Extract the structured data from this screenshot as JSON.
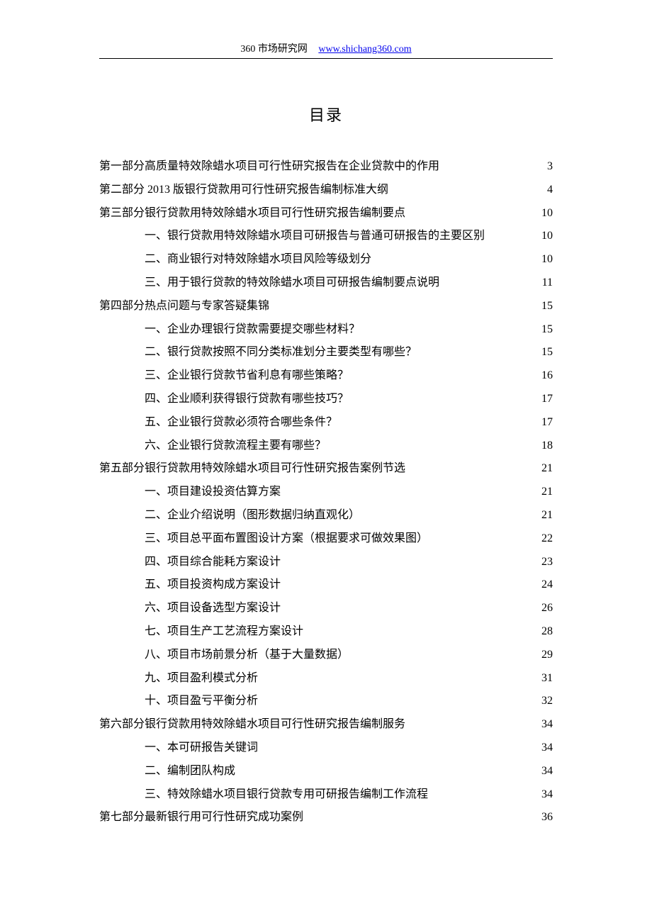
{
  "header": {
    "site_name": "360 市场研究网",
    "url": "www.shichang360.com"
  },
  "title": "目录",
  "toc": [
    {
      "level": 1,
      "label": "第一部分高质量特效除蜡水项目可行性研究报告在企业贷款中的作用",
      "page": "3"
    },
    {
      "level": 1,
      "label": "第二部分 2013 版银行贷款用可行性研究报告编制标准大纲",
      "page": "4"
    },
    {
      "level": 1,
      "label": "第三部分银行贷款用特效除蜡水项目可行性研究报告编制要点",
      "page": "10"
    },
    {
      "level": 2,
      "label": "一、银行贷款用特效除蜡水项目可研报告与普通可研报告的主要区别",
      "page": "10"
    },
    {
      "level": 2,
      "label": "二、商业银行对特效除蜡水项目风险等级划分",
      "page": "10"
    },
    {
      "level": 2,
      "label": "三、用于银行贷款的特效除蜡水项目可研报告编制要点说明",
      "page": "11"
    },
    {
      "level": 1,
      "label": "第四部分热点问题与专家答疑集锦",
      "page": "15"
    },
    {
      "level": 2,
      "label": "一、企业办理银行贷款需要提交哪些材料？",
      "page": "15"
    },
    {
      "level": 2,
      "label": "二、银行贷款按照不同分类标准划分主要类型有哪些？",
      "page": "15"
    },
    {
      "level": 2,
      "label": "三、企业银行贷款节省利息有哪些策略？",
      "page": "16"
    },
    {
      "level": 2,
      "label": "四、企业顺利获得银行贷款有哪些技巧？",
      "page": "17"
    },
    {
      "level": 2,
      "label": "五、企业银行贷款必须符合哪些条件？",
      "page": "17"
    },
    {
      "level": 2,
      "label": "六、企业银行贷款流程主要有哪些？",
      "page": "18"
    },
    {
      "level": 1,
      "label": "第五部分银行贷款用特效除蜡水项目可行性研究报告案例节选",
      "page": "21"
    },
    {
      "level": 2,
      "label": "一、项目建设投资估算方案",
      "page": "21"
    },
    {
      "level": 2,
      "label": "二、企业介绍说明（图形数据归纳直观化）",
      "page": "21"
    },
    {
      "level": 2,
      "label": "三、项目总平面布置图设计方案（根据要求可做效果图）",
      "page": "22"
    },
    {
      "level": 2,
      "label": "四、项目综合能耗方案设计",
      "page": "23"
    },
    {
      "level": 2,
      "label": "五、项目投资构成方案设计",
      "page": "24"
    },
    {
      "level": 2,
      "label": "六、项目设备选型方案设计",
      "page": "26"
    },
    {
      "level": 2,
      "label": "七、项目生产工艺流程方案设计",
      "page": "28"
    },
    {
      "level": 2,
      "label": "八、项目市场前景分析（基于大量数据）",
      "page": "29"
    },
    {
      "level": 2,
      "label": "九、项目盈利模式分析",
      "page": "31"
    },
    {
      "level": 2,
      "label": "十、项目盈亏平衡分析",
      "page": "32"
    },
    {
      "level": 1,
      "label": "第六部分银行贷款用特效除蜡水项目可行性研究报告编制服务",
      "page": "34"
    },
    {
      "level": 2,
      "label": "一、本可研报告关键词",
      "page": "34"
    },
    {
      "level": 2,
      "label": "二、编制团队构成",
      "page": "34"
    },
    {
      "level": 2,
      "label": "三、特效除蜡水项目银行贷款专用可研报告编制工作流程",
      "page": "34"
    },
    {
      "level": 1,
      "label": "第七部分最新银行用可行性研究成功案例",
      "page": "36"
    }
  ]
}
